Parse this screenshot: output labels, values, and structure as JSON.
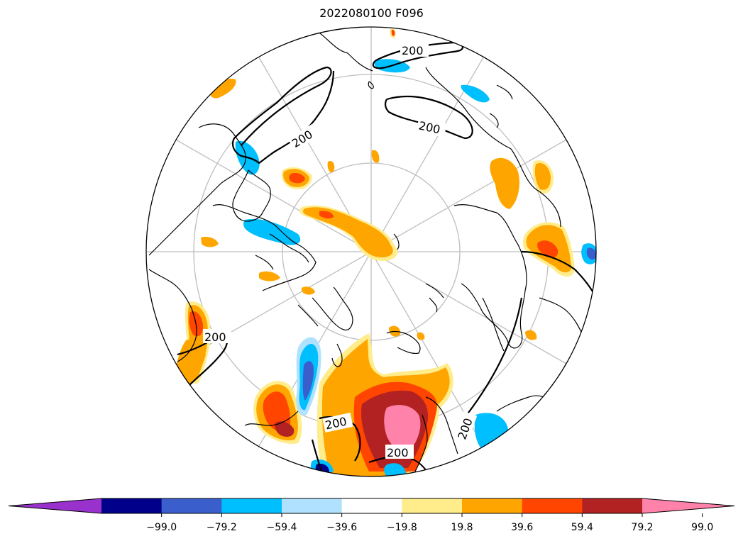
{
  "title": "2022080100 F096",
  "contour_level_label": "200",
  "colorbar": {
    "colors": [
      "#9932cc",
      "#00008b",
      "#3a5fcd",
      "#00bfff",
      "#b0e2ff",
      "#ffffff",
      "#ffec8b",
      "#ffa500",
      "#ff4500",
      "#b22222",
      "#ff82ab"
    ],
    "tick_labels": [
      "−99.0",
      "−79.2",
      "−59.4",
      "−39.6",
      "−19.8",
      "19.8",
      "39.6",
      "59.4",
      "79.2",
      "99.0"
    ],
    "extend": "both"
  },
  "colors": {
    "coastline": "#000000",
    "graticule": "#bebebe",
    "contour": "#000000"
  }
}
